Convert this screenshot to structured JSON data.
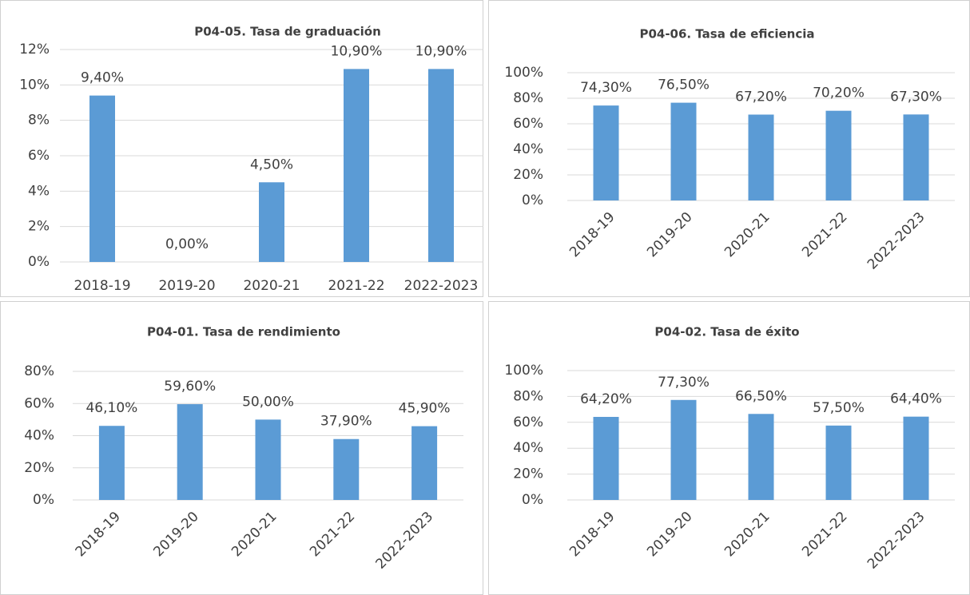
{
  "chart_data": [
    {
      "type": "bar",
      "title": "P04-05. Tasa de graduación",
      "color": "#5b9bd5",
      "grid": true,
      "categories": [
        "2018-19",
        "2019-20",
        "2020-21",
        "2021-22",
        "2022-2023"
      ],
      "values": [
        9.4,
        0,
        4.5,
        10.9,
        10.9
      ],
      "value_labels": [
        "9,40%",
        "0,00%",
        "4,50%",
        "10,90%",
        "10,90%"
      ],
      "ylim": [
        0,
        12
      ],
      "yticks": [
        {
          "value": 0,
          "label": "0%"
        },
        {
          "value": 2,
          "label": "2%"
        },
        {
          "value": 4,
          "label": "4%"
        },
        {
          "value": 6,
          "label": "6%"
        },
        {
          "value": 8,
          "label": "8%"
        },
        {
          "value": 10,
          "label": "10%"
        },
        {
          "value": 12,
          "label": "12%"
        }
      ]
    },
    {
      "type": "bar",
      "title": "P04-06. Tasa de eficiencia",
      "color": "#5b9bd5",
      "grid": true,
      "categories": [
        "2018-19",
        "2019-20",
        "2020-21",
        "2021-22",
        "2022-2023"
      ],
      "values": [
        74.3,
        76.5,
        67.2,
        70.2,
        67.3
      ],
      "value_labels": [
        "74,30%",
        "76,50%",
        "67,20%",
        "70,20%",
        "67,30%"
      ],
      "ylim": [
        0,
        100
      ],
      "yticks": [
        {
          "value": 0,
          "label": "0%"
        },
        {
          "value": 20,
          "label": "20%"
        },
        {
          "value": 40,
          "label": "40%"
        },
        {
          "value": 60,
          "label": "60%"
        },
        {
          "value": 80,
          "label": "80%"
        },
        {
          "value": 100,
          "label": "100%"
        }
      ]
    },
    {
      "type": "bar",
      "title": "P04-01. Tasa de rendimiento",
      "color": "#5b9bd5",
      "grid": true,
      "categories": [
        "2018-19",
        "2019-20",
        "2020-21",
        "2021-22",
        "2022-2023"
      ],
      "values": [
        46.1,
        59.6,
        50.0,
        37.9,
        45.9
      ],
      "value_labels": [
        "46,10%",
        "59,60%",
        "50,00%",
        "37,90%",
        "45,90%"
      ],
      "ylim": [
        0,
        80
      ],
      "yticks": [
        {
          "value": 0,
          "label": "0%"
        },
        {
          "value": 20,
          "label": "20%"
        },
        {
          "value": 40,
          "label": "40%"
        },
        {
          "value": 60,
          "label": "60%"
        },
        {
          "value": 80,
          "label": "80%"
        }
      ]
    },
    {
      "type": "bar",
      "title": "P04-02. Tasa de éxito",
      "color": "#5b9bd5",
      "grid": true,
      "categories": [
        "2018-19",
        "2019-20",
        "2020-21",
        "2021-22",
        "2022-2023"
      ],
      "values": [
        64.2,
        77.3,
        66.5,
        57.5,
        64.4
      ],
      "value_labels": [
        "64,20%",
        "77,30%",
        "66,50%",
        "57,50%",
        "64,40%"
      ],
      "ylim": [
        0,
        100
      ],
      "yticks": [
        {
          "value": 0,
          "label": "0%"
        },
        {
          "value": 20,
          "label": "20%"
        },
        {
          "value": 40,
          "label": "40%"
        },
        {
          "value": 60,
          "label": "60%"
        },
        {
          "value": 80,
          "label": "80%"
        },
        {
          "value": 100,
          "label": "100%"
        }
      ]
    }
  ]
}
